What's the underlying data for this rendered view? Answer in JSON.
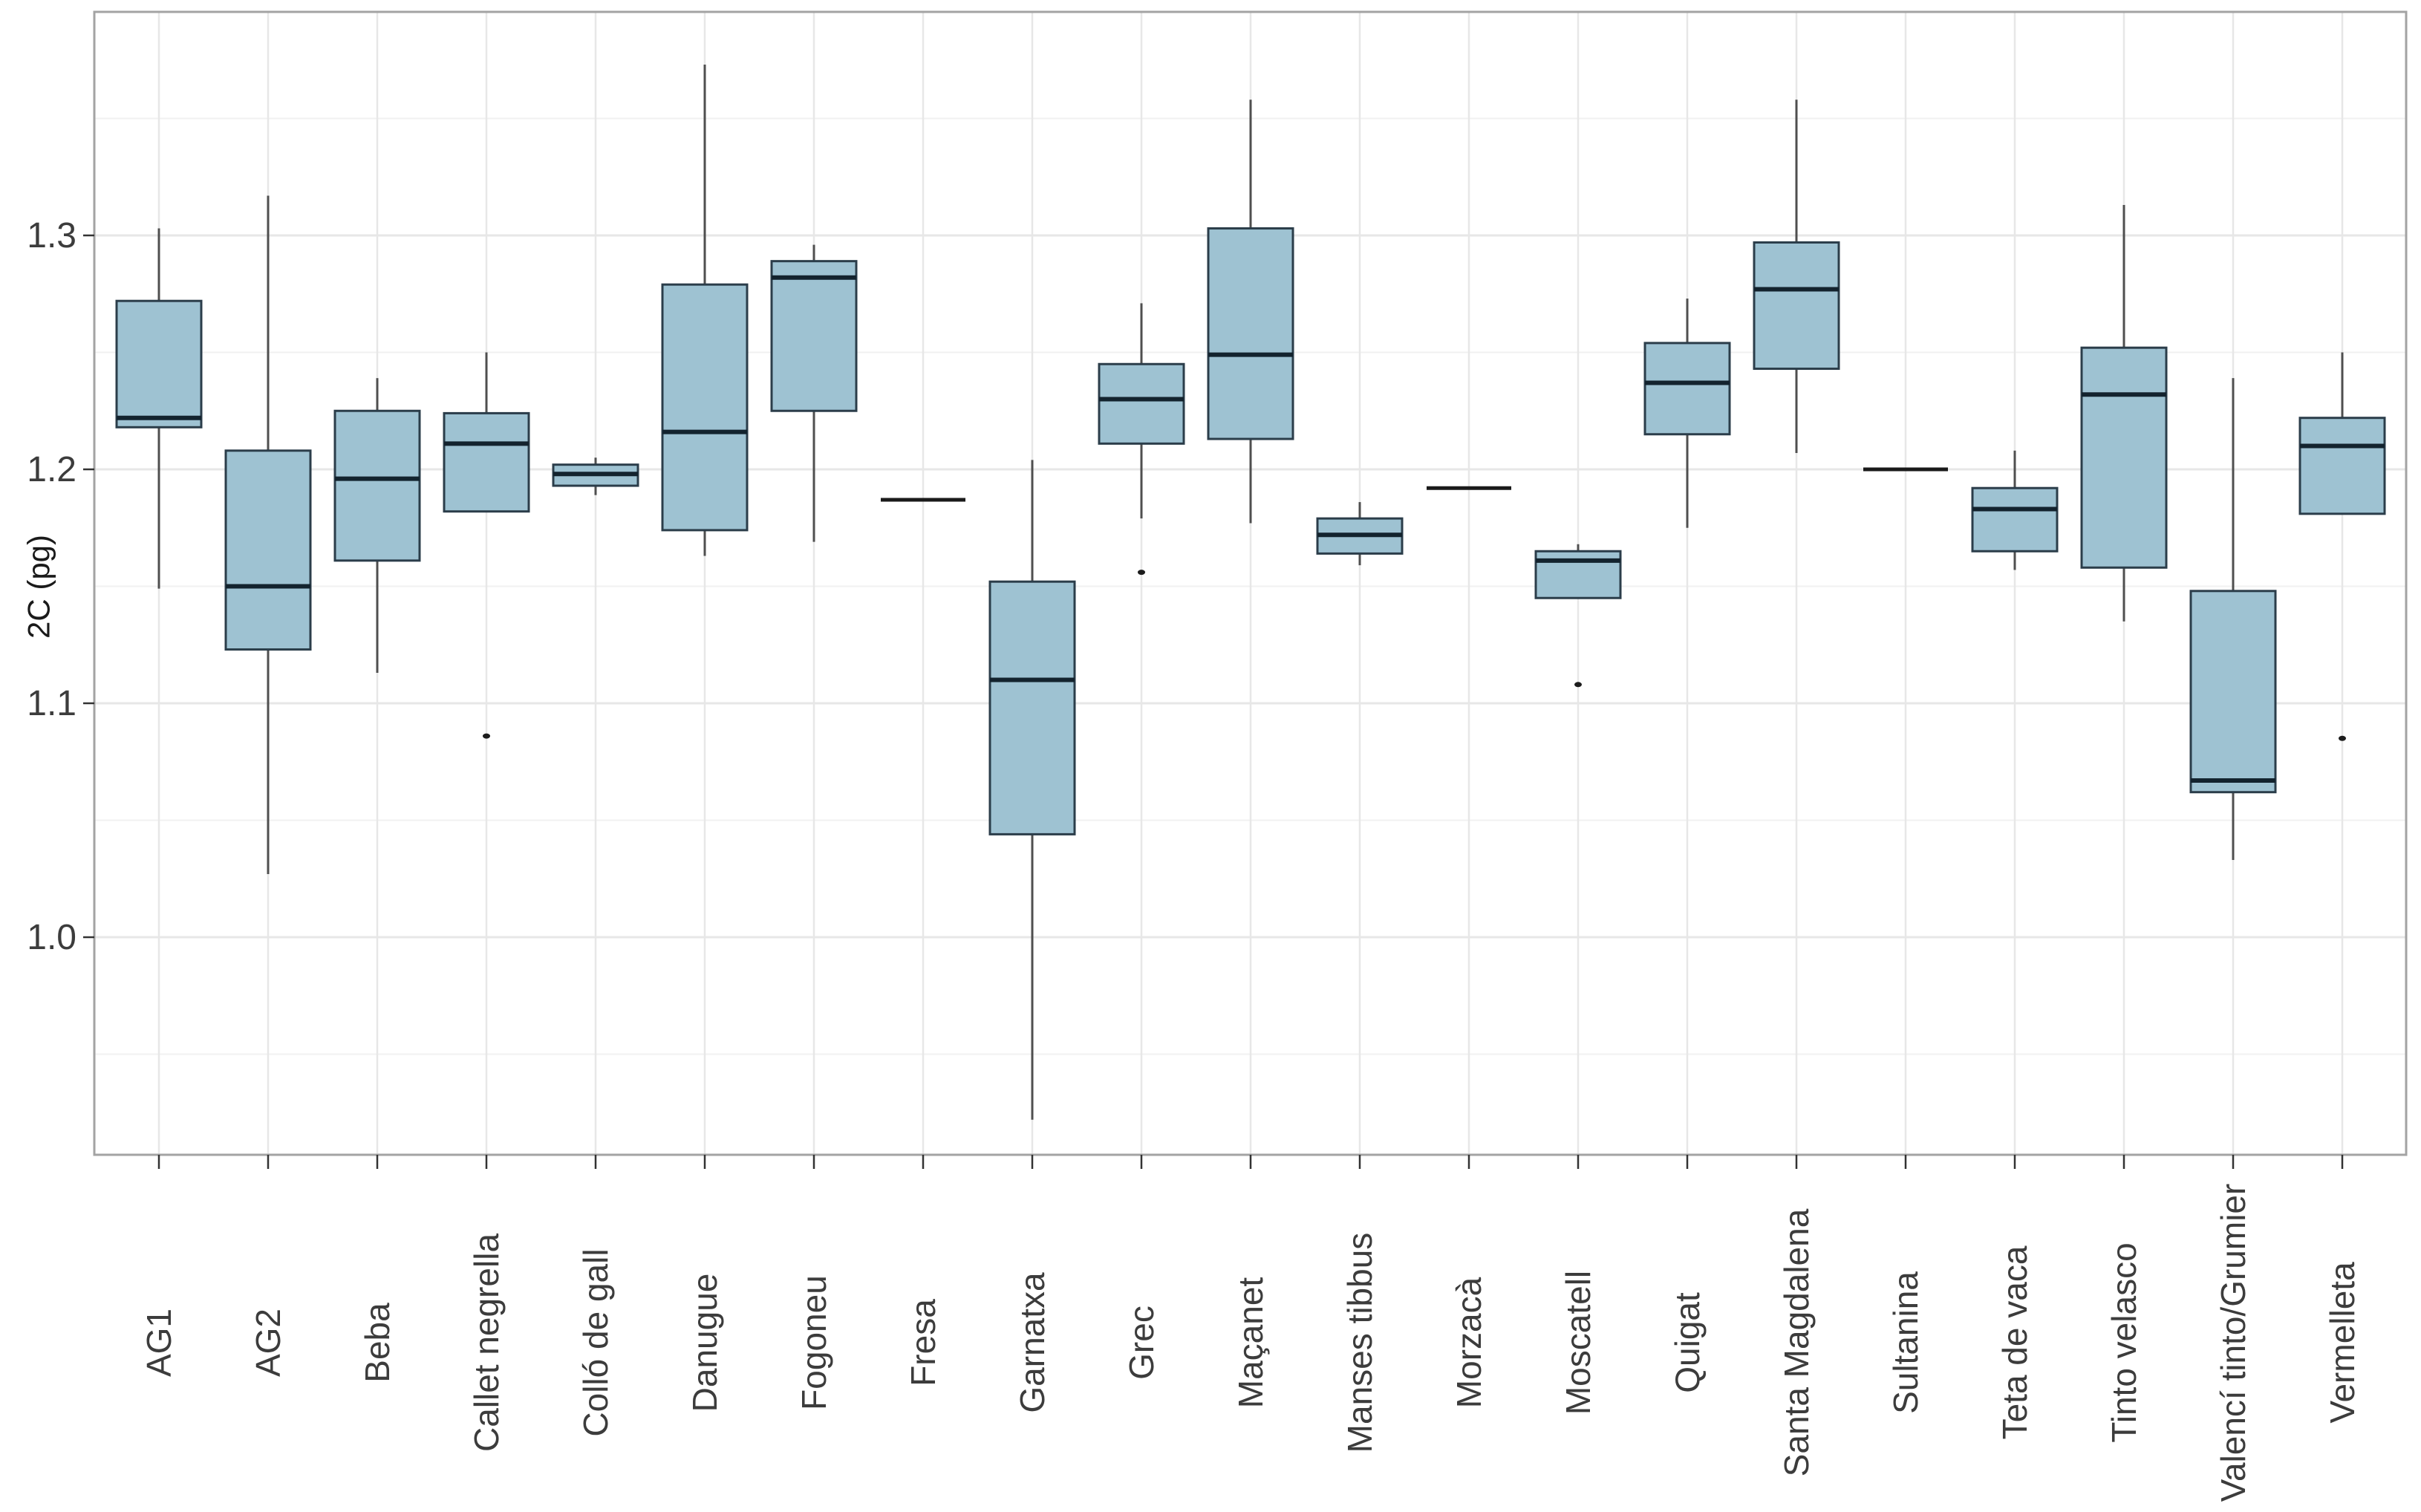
{
  "figure": {
    "ylabel": "2C (pg)"
  },
  "colors": {
    "box_fill": "#9ec2d2",
    "box_border": "#2b3d4a",
    "median_line": "#13232e",
    "flat_line": "#1a1a1a",
    "whisker": "#4f4f4f",
    "outlier": "#1c1c1c",
    "grid_major": "#e7e7e7",
    "grid_minor": "#f1f1f1",
    "panel_border": "#a3a3a3",
    "tick_mark": "#333333",
    "tick_text": "#3c3c3c",
    "axis_title_text": "#1a1a1a",
    "background": "#ffffff"
  },
  "chart_data": {
    "type": "boxplot",
    "title": "",
    "xlabel": "",
    "ylabel": "2C (pg)",
    "ylim": [
      0.9,
      1.4
    ],
    "y_major_ticks": [
      1.0,
      1.1,
      1.2,
      1.3
    ],
    "y_tick_labels": [
      "1.0",
      "1.1",
      "1.2",
      "1.3"
    ],
    "y_minor_gridlines": [
      0.95,
      1.05,
      1.15,
      1.25,
      1.35
    ],
    "grid": true,
    "legend_position": "none",
    "categories": [
      "AG1",
      "AG2",
      "Beba",
      "Callet negrella",
      "Colló de gall",
      "Danugue",
      "Fogoneu",
      "Fresa",
      "Garnatxa",
      "Grec",
      "Maçanet",
      "Manses tibbus",
      "Morzacà",
      "Moscatell",
      "Quigat",
      "Santa Magdalena",
      "Sultanina",
      "Teta de vaca",
      "Tinto velasco",
      "Valencí  tinto/Grumier",
      "Vermelleta"
    ],
    "boxes": [
      {
        "label": "AG1",
        "whisker_low": 1.149,
        "q1": 1.218,
        "median": 1.222,
        "q3": 1.272,
        "whisker_high": 1.303,
        "outliers": []
      },
      {
        "label": "AG2",
        "whisker_low": 1.027,
        "q1": 1.123,
        "median": 1.15,
        "q3": 1.208,
        "whisker_high": 1.317,
        "outliers": []
      },
      {
        "label": "Beba",
        "whisker_low": 1.113,
        "q1": 1.161,
        "median": 1.196,
        "q3": 1.225,
        "whisker_high": 1.239,
        "outliers": []
      },
      {
        "label": "Callet negrella",
        "whisker_low": 1.182,
        "q1": 1.182,
        "median": 1.211,
        "q3": 1.224,
        "whisker_high": 1.25,
        "outliers": [
          1.086
        ]
      },
      {
        "label": "Colló de gall",
        "whisker_low": 1.189,
        "q1": 1.193,
        "median": 1.198,
        "q3": 1.202,
        "whisker_high": 1.205,
        "outliers": []
      },
      {
        "label": "Danugue",
        "whisker_low": 1.163,
        "q1": 1.174,
        "median": 1.216,
        "q3": 1.279,
        "whisker_high": 1.373,
        "outliers": []
      },
      {
        "label": "Fogoneu",
        "whisker_low": 1.169,
        "q1": 1.225,
        "median": 1.282,
        "q3": 1.289,
        "whisker_high": 1.296,
        "outliers": []
      },
      {
        "label": "Fresa",
        "whisker_low": 1.187,
        "q1": 1.187,
        "median": 1.187,
        "q3": 1.187,
        "whisker_high": 1.187,
        "outliers": []
      },
      {
        "label": "Garnatxa",
        "whisker_low": 0.922,
        "q1": 1.044,
        "median": 1.11,
        "q3": 1.152,
        "whisker_high": 1.204,
        "outliers": []
      },
      {
        "label": "Grec",
        "whisker_low": 1.179,
        "q1": 1.211,
        "median": 1.23,
        "q3": 1.245,
        "whisker_high": 1.271,
        "outliers": [
          1.156
        ]
      },
      {
        "label": "Maçanet",
        "whisker_low": 1.177,
        "q1": 1.213,
        "median": 1.249,
        "q3": 1.303,
        "whisker_high": 1.358,
        "outliers": []
      },
      {
        "label": "Manses tibbus",
        "whisker_low": 1.159,
        "q1": 1.164,
        "median": 1.172,
        "q3": 1.179,
        "whisker_high": 1.186,
        "outliers": []
      },
      {
        "label": "Morzacà",
        "whisker_low": 1.192,
        "q1": 1.192,
        "median": 1.192,
        "q3": 1.192,
        "whisker_high": 1.192,
        "outliers": []
      },
      {
        "label": "Moscatell",
        "whisker_low": 1.145,
        "q1": 1.145,
        "median": 1.161,
        "q3": 1.165,
        "whisker_high": 1.168,
        "outliers": [
          1.108
        ]
      },
      {
        "label": "Quigat",
        "whisker_low": 1.175,
        "q1": 1.215,
        "median": 1.237,
        "q3": 1.254,
        "whisker_high": 1.273,
        "outliers": []
      },
      {
        "label": "Santa Magdalena",
        "whisker_low": 1.207,
        "q1": 1.243,
        "median": 1.277,
        "q3": 1.297,
        "whisker_high": 1.358,
        "outliers": []
      },
      {
        "label": "Sultanina",
        "whisker_low": 1.2,
        "q1": 1.2,
        "median": 1.2,
        "q3": 1.2,
        "whisker_high": 1.2,
        "outliers": []
      },
      {
        "label": "Teta de vaca",
        "whisker_low": 1.157,
        "q1": 1.165,
        "median": 1.183,
        "q3": 1.192,
        "whisker_high": 1.208,
        "outliers": []
      },
      {
        "label": "Tinto velasco",
        "whisker_low": 1.135,
        "q1": 1.158,
        "median": 1.232,
        "q3": 1.252,
        "whisker_high": 1.313,
        "outliers": []
      },
      {
        "label": "Valencí  tinto/Grumier",
        "whisker_low": 1.033,
        "q1": 1.062,
        "median": 1.067,
        "q3": 1.148,
        "whisker_high": 1.239,
        "outliers": []
      },
      {
        "label": "Vermelleta",
        "whisker_low": 1.181,
        "q1": 1.181,
        "median": 1.21,
        "q3": 1.222,
        "whisker_high": 1.25,
        "outliers": [
          1.085
        ]
      }
    ]
  }
}
